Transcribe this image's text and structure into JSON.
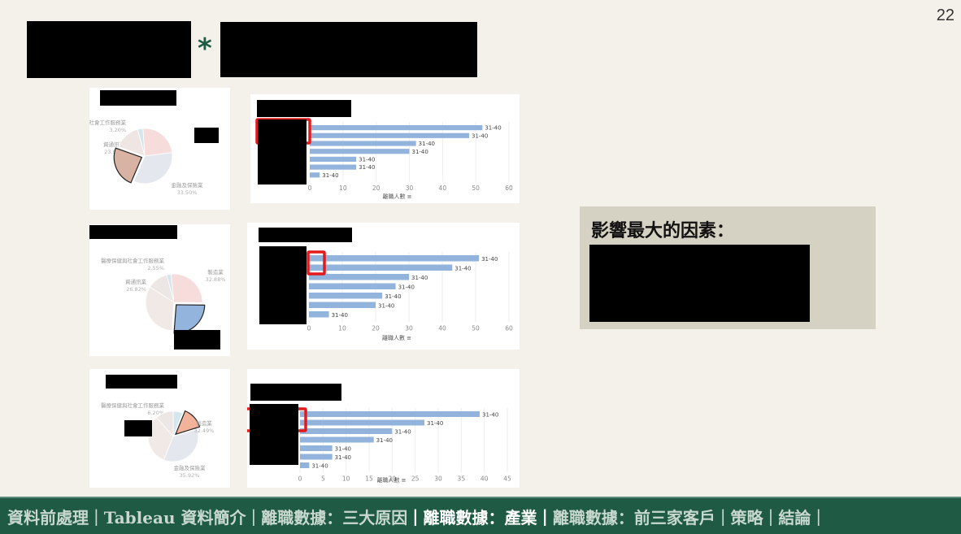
{
  "page_number": "22",
  "title_joiner": "*",
  "factor_box": {
    "title": "影響最大的因素："
  },
  "nav": [
    {
      "label": "資料前處理",
      "active": false
    },
    {
      "label": "Tableau 資料簡介",
      "active": false
    },
    {
      "label": "離職數據：三大原因",
      "active": false
    },
    {
      "label": "離職數據：產業",
      "active": true
    },
    {
      "label": "離職數據：前三家客戶",
      "active": false
    },
    {
      "label": "策略",
      "active": false
    },
    {
      "label": "結論",
      "active": false
    }
  ],
  "colors": {
    "footer_bg": "#1f5a44",
    "bar": "#92b4dc",
    "highlight_box": "#e31a1c"
  },
  "chart_data": [
    {
      "type": "pie",
      "slices": [
        {
          "label": "醫療保健與社會工作服務業",
          "pct": "3.20%",
          "value": 3.2,
          "color": "#d6e6ee"
        },
        {
          "label": "資通訊業",
          "pct": "23.91%",
          "value": 23.91,
          "color": "#f7dcdc"
        },
        {
          "label": "金融及保險業",
          "pct": "33.50%",
          "value": 33.5,
          "color": "#e4e8ee"
        },
        {
          "label": "",
          "pct": "",
          "value": 24.0,
          "color": "#d8b2a2",
          "highlight": true
        },
        {
          "label": "",
          "pct": "",
          "value": 15.39,
          "color": "#efe5e2"
        }
      ]
    },
    {
      "type": "bar",
      "xlabel": "離職人數",
      "xlim": [
        0,
        60
      ],
      "xticks": [
        0,
        10,
        20,
        30,
        40,
        50,
        60
      ],
      "values": [
        52,
        48,
        32,
        30,
        14,
        14,
        3
      ],
      "labels": [
        "31-40",
        "31-40",
        "31-40",
        "31-40",
        "31-40",
        "31-40",
        "31-40"
      ]
    },
    {
      "type": "pie",
      "slices": [
        {
          "label": "醫療保健與社會工作服務業",
          "pct": "2.55%",
          "value": 2.55,
          "color": "#d6e6ee"
        },
        {
          "label": "資通訊業",
          "pct": "26.82%",
          "value": 26.82,
          "color": "#f7dcdc"
        },
        {
          "label": "",
          "pct": "",
          "value": 26.0,
          "color": "#93b5dd",
          "highlight": true
        },
        {
          "label": "製造業",
          "pct": "32.88%",
          "value": 32.88,
          "color": "#f1e9e6"
        },
        {
          "label": "",
          "pct": "",
          "value": 11.75,
          "color": "#ece6e4"
        }
      ]
    },
    {
      "type": "bar",
      "xlabel": "離職人數",
      "xlim": [
        0,
        60
      ],
      "xticks": [
        0,
        10,
        20,
        30,
        40,
        50,
        60
      ],
      "values": [
        51,
        43,
        30,
        26,
        22,
        20,
        6
      ],
      "labels": [
        "31-40",
        "31-40",
        "31-40",
        "31-40",
        "31-40",
        "31-40",
        "31-40"
      ]
    },
    {
      "type": "pie",
      "slices": [
        {
          "label": "醫療保健與社會工作服務業",
          "pct": "6.20%",
          "value": 6.2,
          "color": "#d6e6ee"
        },
        {
          "label": "",
          "pct": "",
          "value": 14.0,
          "color": "#f3b39a",
          "highlight": true
        },
        {
          "label": "金融及保險業",
          "pct": "35.92%",
          "value": 35.92,
          "color": "#e4e8ee"
        },
        {
          "label": "製造業",
          "pct": "32.49%",
          "value": 32.49,
          "color": "#f1e9e6"
        },
        {
          "label": "",
          "pct": "",
          "value": 11.39,
          "color": "#ece6e4"
        }
      ]
    },
    {
      "type": "bar",
      "xlabel": "離職人數",
      "xlim": [
        0,
        45
      ],
      "xticks": [
        0,
        5,
        10,
        15,
        20,
        25,
        30,
        35,
        40,
        45
      ],
      "values": [
        39,
        27,
        20,
        16,
        7,
        7,
        2
      ],
      "labels": [
        "31-40",
        "31-40",
        "31-40",
        "31-40",
        "31-40",
        "31-40",
        "31-40"
      ]
    }
  ]
}
